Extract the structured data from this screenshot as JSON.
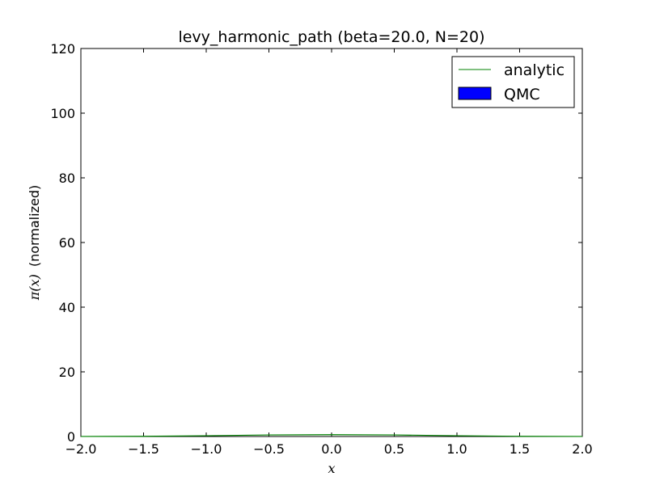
{
  "chart_data": {
    "type": "line",
    "title": "levy_harmonic_path (beta=20.0, N=20)",
    "xlabel": "x",
    "ylabel_symbol": "π(x)",
    "ylabel_text": "(normalized)",
    "xlim": [
      -2.0,
      2.0
    ],
    "ylim": [
      0,
      120
    ],
    "x_ticks": [
      -2.0,
      -1.5,
      -1.0,
      -0.5,
      0.0,
      0.5,
      1.0,
      1.5,
      2.0
    ],
    "x_tick_labels": [
      "−2.0",
      "−1.5",
      "−1.0",
      "−0.5",
      "0.0",
      "0.5",
      "1.0",
      "1.5",
      "2.0"
    ],
    "y_ticks": [
      0,
      20,
      40,
      60,
      80,
      100,
      120
    ],
    "y_tick_labels": [
      "0",
      "20",
      "40",
      "60",
      "80",
      "100",
      "120"
    ],
    "grid": false,
    "legend_position": "upper-right",
    "series": [
      {
        "name": "analytic",
        "kind": "line",
        "color": "#008000",
        "x": [
          -2.0,
          -1.5,
          -1.0,
          -0.5,
          0.0,
          0.5,
          1.0,
          1.5,
          2.0
        ],
        "y": [
          0.01,
          0.06,
          0.24,
          0.48,
          0.56,
          0.48,
          0.24,
          0.06,
          0.01
        ]
      },
      {
        "name": "QMC",
        "kind": "histogram",
        "color": "#0000ff",
        "x": [],
        "y": []
      }
    ]
  }
}
